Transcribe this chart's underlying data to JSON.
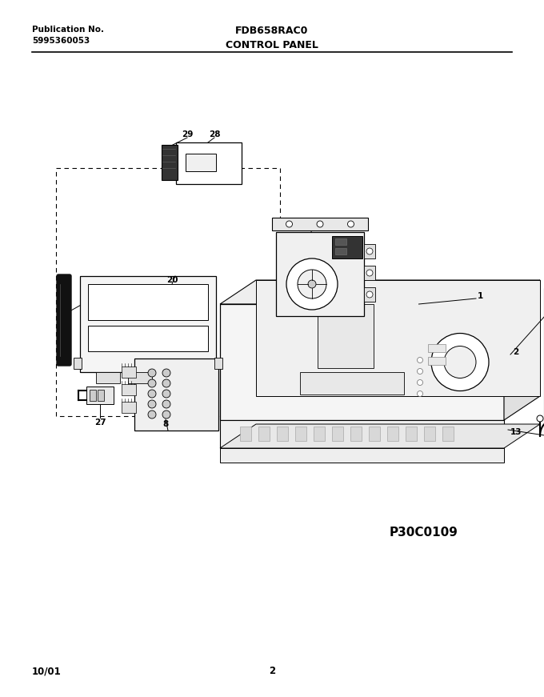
{
  "title_left_line1": "Publication No.",
  "title_left_line2": "5995360053",
  "title_center": "FDB658RAC0",
  "subtitle_center": "CONTROL PANEL",
  "footer_left": "10/01",
  "footer_center": "2",
  "image_label": "P30C0109",
  "bg_color": "#ffffff",
  "lc": "#000000",
  "tc": "#000000",
  "figsize": [
    6.8,
    8.71
  ],
  "dpi": 100
}
